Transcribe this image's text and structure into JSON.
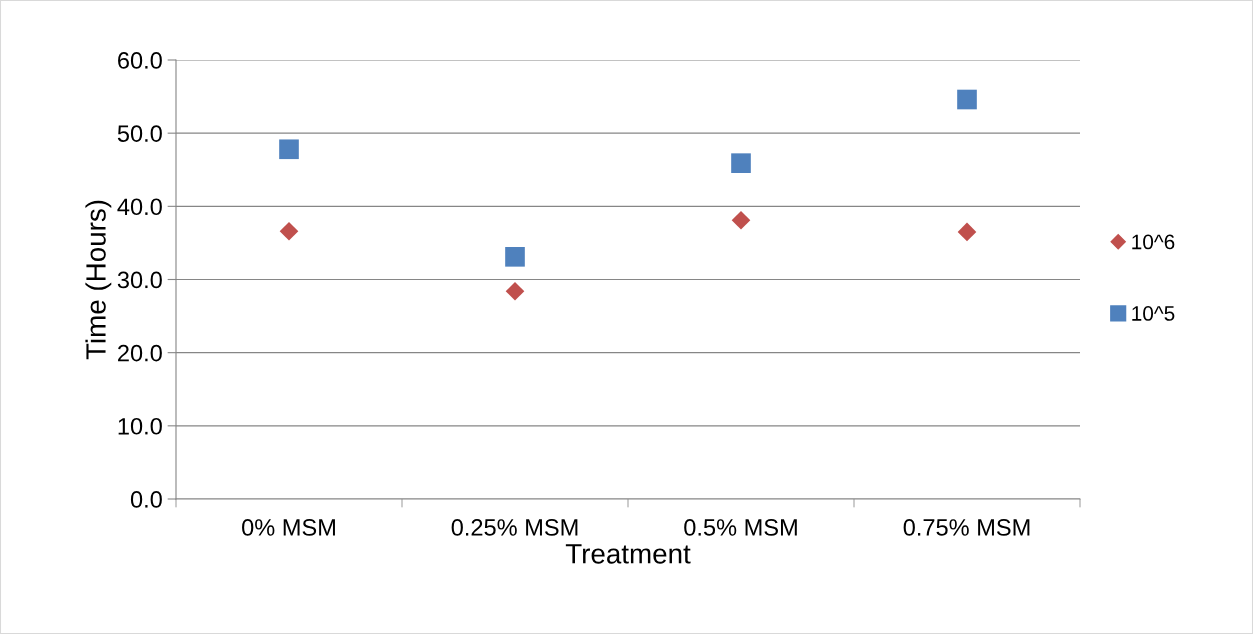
{
  "chart_data": {
    "type": "scatter",
    "xlabel": "Treatment",
    "ylabel": "Time (Hours)",
    "categories": [
      "0% MSM",
      "0.25% MSM",
      "0.5% MSM",
      "0.75% MSM"
    ],
    "series": [
      {
        "name": "10^6",
        "color": "#c0504d",
        "marker": "diamond",
        "values": [
          36.6,
          28.4,
          38.1,
          36.5
        ]
      },
      {
        "name": "10^5",
        "color": "#4f81bd",
        "marker": "square",
        "values": [
          47.8,
          33.1,
          45.9,
          54.6
        ]
      }
    ],
    "ylim": [
      0,
      60
    ],
    "yticks": [
      {
        "value": 0,
        "label": "0.0"
      },
      {
        "value": 10,
        "label": "10.0"
      },
      {
        "value": 20,
        "label": "20.0"
      },
      {
        "value": 30,
        "label": "30.0"
      },
      {
        "value": 40,
        "label": "40.0"
      },
      {
        "value": 50,
        "label": "50.0"
      },
      {
        "value": 60,
        "label": "60.0"
      }
    ],
    "grid": "y",
    "legend": "right"
  }
}
